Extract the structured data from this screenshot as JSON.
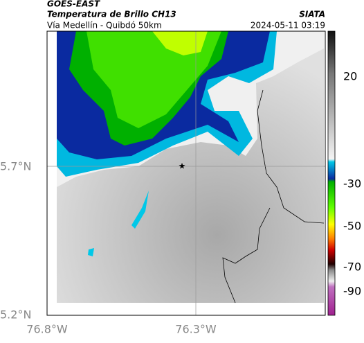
{
  "header": {
    "title": "GOES-EAST",
    "subtitle": "Temperatura de Brillo CH13",
    "location": "Vía Medellín - Quibdó 50km",
    "agency": "SIATA",
    "datetime": "2024-05-11 03:19"
  },
  "map": {
    "lat_labels": [
      "5.7°N",
      "5.2°N"
    ],
    "lon_labels": [
      "76.8°W",
      "76.3°W"
    ]
  },
  "colorbar": {
    "labels": [
      "20",
      "-30",
      "-50",
      "-70",
      "-90"
    ]
  }
}
